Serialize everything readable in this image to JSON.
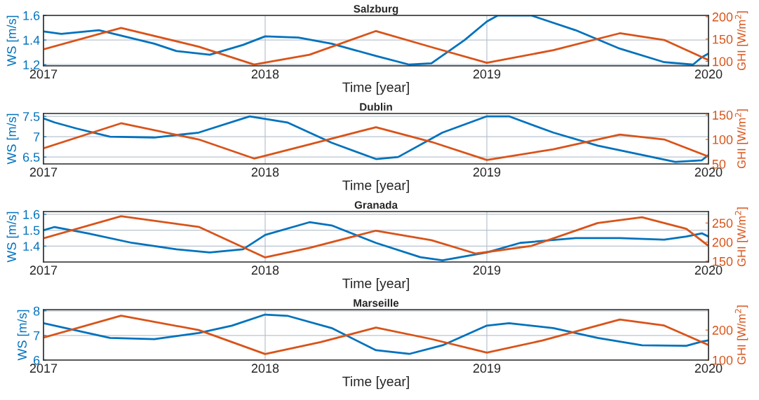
{
  "chart_data": [
    {
      "type": "line",
      "title": "Salzburg",
      "xlabel": "Time [year]",
      "ylabel": "WS [m/s]",
      "y2label": "GHI [W/m$^{2}$]",
      "grid": true,
      "xlim": [
        2017,
        2020
      ],
      "xticks": [
        2017,
        2018,
        2019,
        2020
      ],
      "ylim": [
        1.19,
        1.6
      ],
      "yticks": [
        1.2,
        1.4,
        1.6
      ],
      "y2lim": [
        90,
        203
      ],
      "y2ticks": [
        100,
        150,
        200
      ],
      "series": [
        {
          "color": "#0072bd",
          "x": [
            2017.0,
            2017.08,
            2017.25,
            2017.5,
            2017.6,
            2017.75,
            2017.9,
            2018.0,
            2018.15,
            2018.3,
            2018.5,
            2018.65,
            2018.75,
            2018.9,
            2019.0,
            2019.05,
            2019.2,
            2019.4,
            2019.6,
            2019.8,
            2019.93,
            2019.97,
            2020.0
          ],
          "values": [
            1.47,
            1.45,
            1.48,
            1.37,
            1.31,
            1.28,
            1.36,
            1.43,
            1.42,
            1.37,
            1.27,
            1.2,
            1.21,
            1.4,
            1.55,
            1.6,
            1.6,
            1.48,
            1.33,
            1.22,
            1.2,
            1.26,
            1.29
          ]
        },
        {
          "color": "#d95319",
          "axis": "y2",
          "x": [
            2017.0,
            2017.35,
            2017.7,
            2017.95,
            2018.2,
            2018.5,
            2018.75,
            2019.0,
            2019.3,
            2019.6,
            2019.8,
            2020.0
          ],
          "values": [
            127,
            175,
            133,
            93,
            115,
            168,
            132,
            97,
            125,
            163,
            148,
            103
          ]
        }
      ]
    },
    {
      "type": "line",
      "title": "Dublin",
      "xlabel": "Time [year]",
      "ylabel": "WS [m/s]",
      "y2label": "GHI [W/m$^{2}$]",
      "grid": true,
      "xlim": [
        2017,
        2020
      ],
      "xticks": [
        2017,
        2018,
        2019,
        2020
      ],
      "ylim": [
        6.33,
        7.57
      ],
      "yticks": [
        6.5,
        7,
        7.5
      ],
      "y2lim": [
        50,
        153
      ],
      "y2ticks": [
        50,
        100,
        150
      ],
      "series": [
        {
          "color": "#0072bd",
          "x": [
            2017.0,
            2017.05,
            2017.15,
            2017.3,
            2017.5,
            2017.7,
            2017.93,
            2018.1,
            2018.3,
            2018.5,
            2018.6,
            2018.8,
            2019.0,
            2019.1,
            2019.3,
            2019.5,
            2019.7,
            2019.85,
            2019.97,
            2020.0
          ],
          "values": [
            7.45,
            7.35,
            7.2,
            7.0,
            6.98,
            7.1,
            7.5,
            7.35,
            6.85,
            6.45,
            6.5,
            7.1,
            7.5,
            7.5,
            7.1,
            6.78,
            6.55,
            6.38,
            6.42,
            6.55
          ]
        },
        {
          "color": "#d95319",
          "axis": "y2",
          "x": [
            2017.0,
            2017.35,
            2017.7,
            2017.95,
            2018.2,
            2018.5,
            2018.75,
            2019.0,
            2019.3,
            2019.6,
            2019.8,
            2020.0
          ],
          "values": [
            82,
            133,
            100,
            61,
            90,
            125,
            95,
            58,
            80,
            110,
            100,
            65
          ]
        }
      ]
    },
    {
      "type": "line",
      "title": "Granada",
      "xlabel": "Time [year]",
      "ylabel": "WS [m/s]",
      "y2label": "GHI [W/m$^{2}$]",
      "grid": true,
      "xlim": [
        2017,
        2020
      ],
      "xticks": [
        2017,
        2018,
        2019,
        2020
      ],
      "ylim": [
        1.3,
        1.617
      ],
      "yticks": [
        1.4,
        1.5,
        1.6
      ],
      "y2lim": [
        148,
        280
      ],
      "y2ticks": [
        150,
        200,
        250
      ],
      "series": [
        {
          "color": "#0072bd",
          "x": [
            2017.0,
            2017.05,
            2017.2,
            2017.4,
            2017.6,
            2017.75,
            2017.9,
            2018.0,
            2018.2,
            2018.3,
            2018.5,
            2018.7,
            2018.8,
            2019.0,
            2019.15,
            2019.4,
            2019.6,
            2019.8,
            2019.9,
            2019.97,
            2020.0
          ],
          "values": [
            1.5,
            1.52,
            1.48,
            1.42,
            1.38,
            1.36,
            1.38,
            1.47,
            1.55,
            1.53,
            1.42,
            1.33,
            1.31,
            1.36,
            1.42,
            1.45,
            1.45,
            1.44,
            1.46,
            1.48,
            1.46
          ]
        },
        {
          "color": "#d95319",
          "axis": "y2",
          "x": [
            2017.0,
            2017.35,
            2017.7,
            2018.0,
            2018.2,
            2018.5,
            2018.75,
            2018.95,
            2019.2,
            2019.5,
            2019.7,
            2019.9,
            2020.0
          ],
          "values": [
            210,
            268,
            240,
            160,
            185,
            230,
            205,
            170,
            190,
            250,
            265,
            235,
            190
          ]
        }
      ]
    },
    {
      "type": "line",
      "title": "Marseille",
      "xlabel": "Time [year]",
      "ylabel": "WS [m/s]",
      "y2label": "GHI [W/m$^{2}$]",
      "grid": true,
      "xlim": [
        2017,
        2020
      ],
      "xticks": [
        2017,
        2018,
        2019,
        2020
      ],
      "ylim": [
        6,
        8.05
      ],
      "yticks": [
        6,
        7,
        8
      ],
      "y2lim": [
        100,
        268
      ],
      "y2ticks": [
        100,
        200
      ],
      "series": [
        {
          "color": "#0072bd",
          "x": [
            2017.0,
            2017.1,
            2017.3,
            2017.5,
            2017.7,
            2017.85,
            2018.0,
            2018.1,
            2018.3,
            2018.5,
            2018.65,
            2018.8,
            2019.0,
            2019.1,
            2019.3,
            2019.5,
            2019.7,
            2019.9,
            2019.97,
            2020.0
          ],
          "values": [
            7.5,
            7.3,
            6.9,
            6.85,
            7.1,
            7.4,
            7.85,
            7.8,
            7.3,
            6.4,
            6.25,
            6.6,
            7.4,
            7.5,
            7.3,
            6.9,
            6.6,
            6.58,
            6.75,
            6.8
          ]
        },
        {
          "color": "#d95319",
          "axis": "y2",
          "x": [
            2017.0,
            2017.35,
            2017.7,
            2018.0,
            2018.25,
            2018.5,
            2018.75,
            2019.0,
            2019.25,
            2019.6,
            2019.8,
            2020.0
          ],
          "values": [
            175,
            248,
            200,
            120,
            160,
            208,
            170,
            125,
            165,
            235,
            215,
            150
          ]
        }
      ]
    }
  ]
}
